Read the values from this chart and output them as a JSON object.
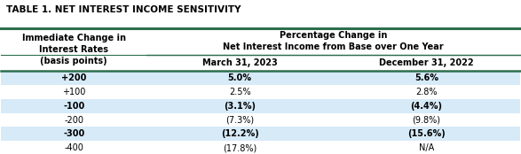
{
  "title": "TABLE 1. NET INTEREST INCOME SENSITIVITY",
  "col_header1_left": "Immediate Change in\nInterest Rates\n(basis points)",
  "col_header1_right": "Percentage Change in\nNet Interest Income from Base over One Year",
  "col_header2_mid": "March 31, 2023",
  "col_header2_right": "December 31, 2022",
  "rows": [
    [
      "+200",
      "5.0%",
      "5.6%"
    ],
    [
      "+100",
      "2.5%",
      "2.8%"
    ],
    [
      "-100",
      "(3.1%)",
      "(4.4%)"
    ],
    [
      "-200",
      "(7.3%)",
      "(9.8%)"
    ],
    [
      "-300",
      "(12.2%)",
      "(15.6%)"
    ],
    [
      "-400",
      "(17.8%)",
      "N/A"
    ]
  ],
  "bold_rows": [
    0,
    2,
    4
  ],
  "shaded_rows": [
    0,
    2,
    4
  ],
  "bg_color": "#ffffff",
  "shaded_color": "#d6eaf8",
  "border_color": "#2e6e4e",
  "text_color": "#000000",
  "title_fontsize": 7.5,
  "header_fontsize": 7.0,
  "cell_fontsize": 7.0,
  "col_split1": 0.28,
  "col_split2": 0.64
}
